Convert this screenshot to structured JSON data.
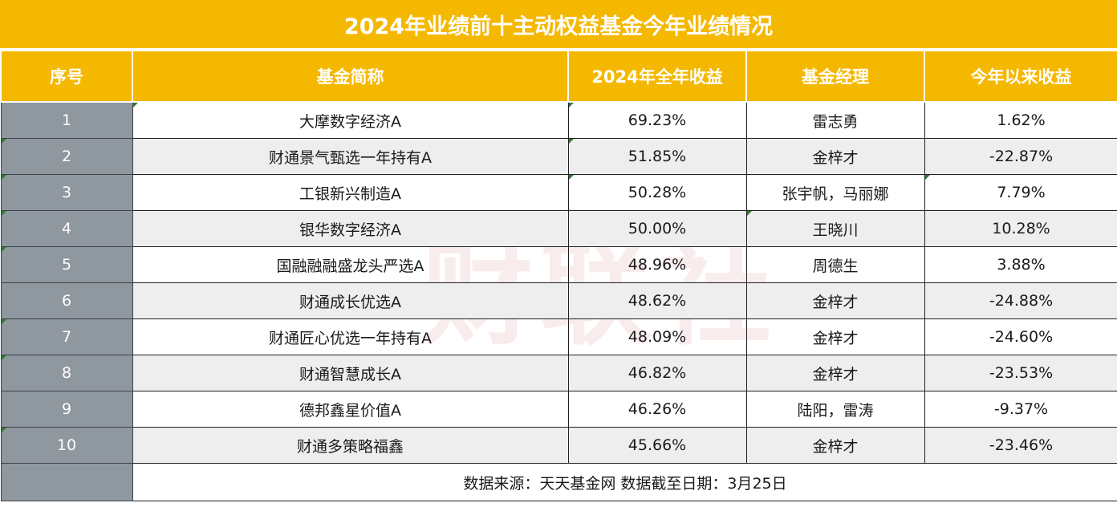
{
  "title": "2024年业绩前十主动权益基金今年业绩情况",
  "headers": {
    "index": "序号",
    "name": "基金简称",
    "return_2024": "2024年全年收益",
    "manager": "基金经理",
    "ytd": "今年以来收益"
  },
  "rows": [
    {
      "index": "1",
      "name": "大摩数字经济A",
      "return_2024": "69.23%",
      "manager": "雷志勇",
      "ytd": "1.62%"
    },
    {
      "index": "2",
      "name": "财通景气甄选一年持有A",
      "return_2024": "51.85%",
      "manager": "金梓才",
      "ytd": "-22.87%"
    },
    {
      "index": "3",
      "name": "工银新兴制造A",
      "return_2024": "50.28%",
      "manager": "张宇帆，马丽娜",
      "ytd": "7.79%"
    },
    {
      "index": "4",
      "name": "银华数字经济A",
      "return_2024": "50.00%",
      "manager": "王晓川",
      "ytd": "10.28%"
    },
    {
      "index": "5",
      "name": "国融融融盛龙头严选A",
      "return_2024": "48.96%",
      "manager": "周德生",
      "ytd": "3.88%"
    },
    {
      "index": "6",
      "name": "财通成长优选A",
      "return_2024": "48.62%",
      "manager": "金梓才",
      "ytd": "-24.88%"
    },
    {
      "index": "7",
      "name": "财通匠心优选一年持有A",
      "return_2024": "48.09%",
      "manager": "金梓才",
      "ytd": "-24.60%"
    },
    {
      "index": "8",
      "name": "财通智慧成长A",
      "return_2024": "46.82%",
      "manager": "金梓才",
      "ytd": "-23.53%"
    },
    {
      "index": "9",
      "name": "德邦鑫星价值A",
      "return_2024": "46.26%",
      "manager": "陆阳，雷涛",
      "ytd": "-9.37%"
    },
    {
      "index": "10",
      "name": "财通多策略福鑫",
      "return_2024": "45.66%",
      "manager": "金梓才",
      "ytd": "-23.46%"
    }
  ],
  "source": "数据来源：天天基金网  数据截至日期：3月25日",
  "colors": {
    "header_bg": "#f5b800",
    "index_bg": "#8f979f",
    "alt_row_bg": "#eeeeee"
  }
}
